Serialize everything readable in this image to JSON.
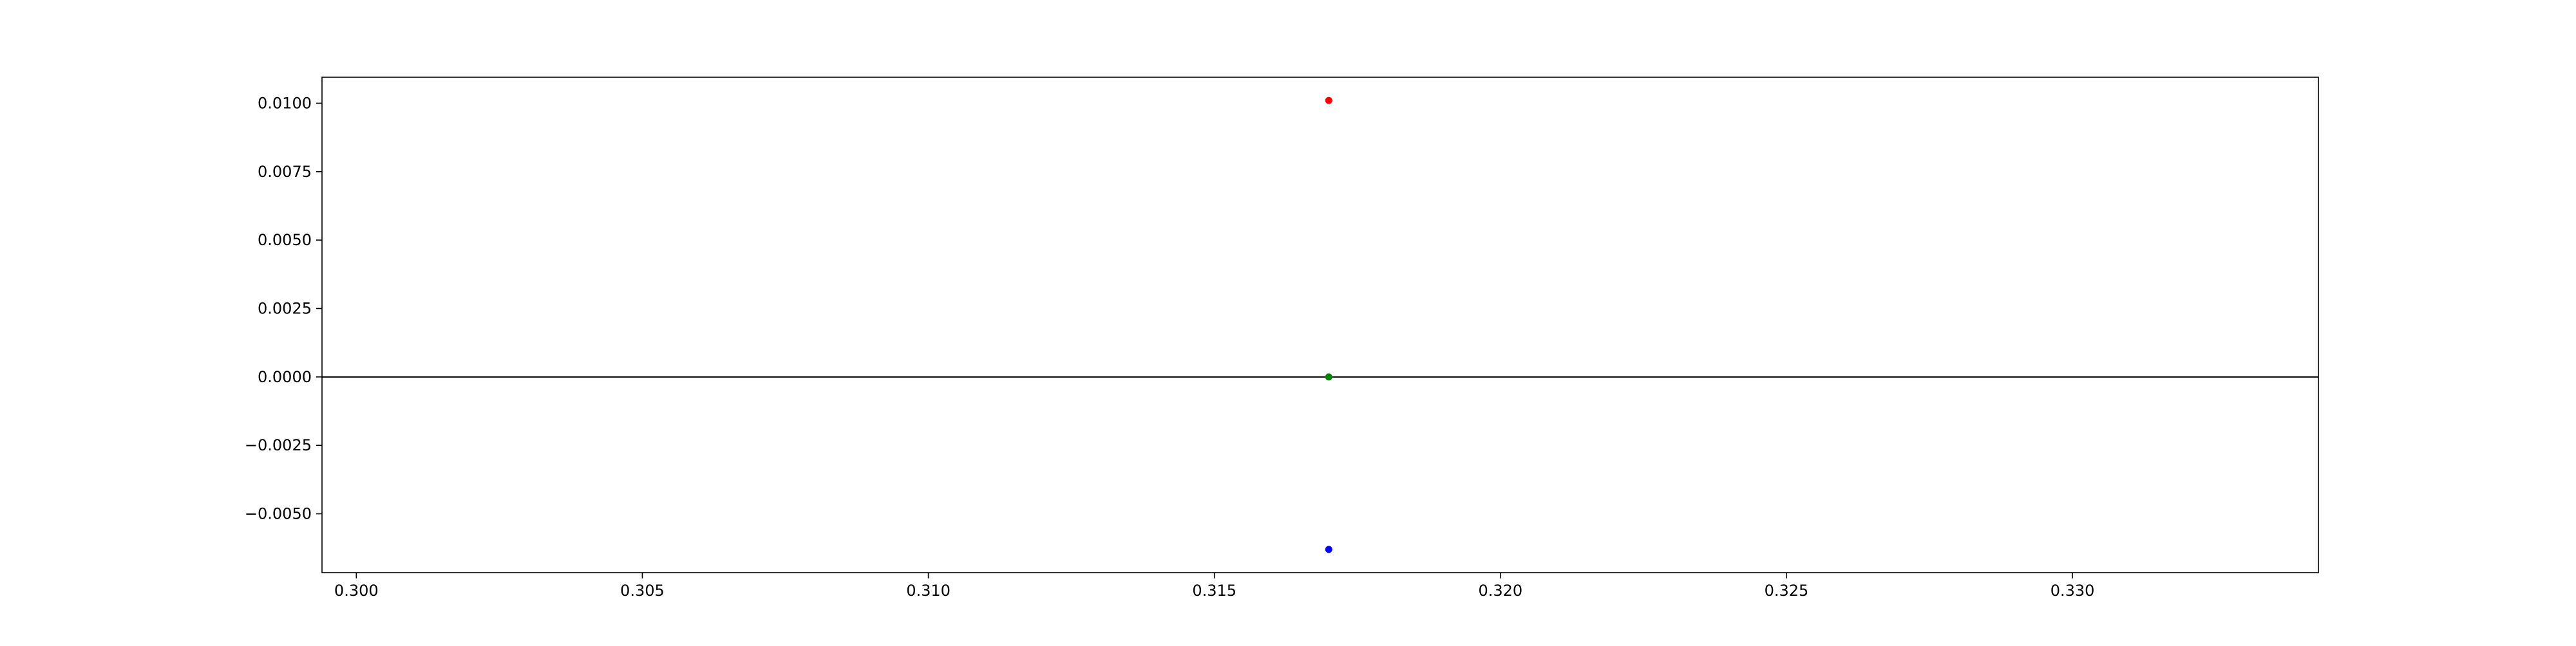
{
  "chart_data": {
    "type": "scatter",
    "title": "",
    "xlabel": "",
    "ylabel": "",
    "xlim": [
      0.2994,
      0.3343
    ],
    "ylim": [
      -0.00715,
      0.01095
    ],
    "x_ticks": [
      "0.300",
      "0.305",
      "0.310",
      "0.315",
      "0.320",
      "0.325",
      "0.330"
    ],
    "y_ticks": [
      "0.0100",
      "0.0075",
      "0.0050",
      "0.0025",
      "0.0000",
      "−0.0025",
      "−0.0050"
    ],
    "grid": false,
    "legend": "none",
    "reference_line": {
      "y": 0,
      "color": "#000000"
    },
    "points": [
      {
        "x": 0.317,
        "y": 0.0101,
        "color": "#ff0000"
      },
      {
        "x": 0.317,
        "y": 0.0,
        "color": "#008000"
      },
      {
        "x": 0.317,
        "y": -0.0063,
        "color": "#0000ff"
      }
    ]
  }
}
